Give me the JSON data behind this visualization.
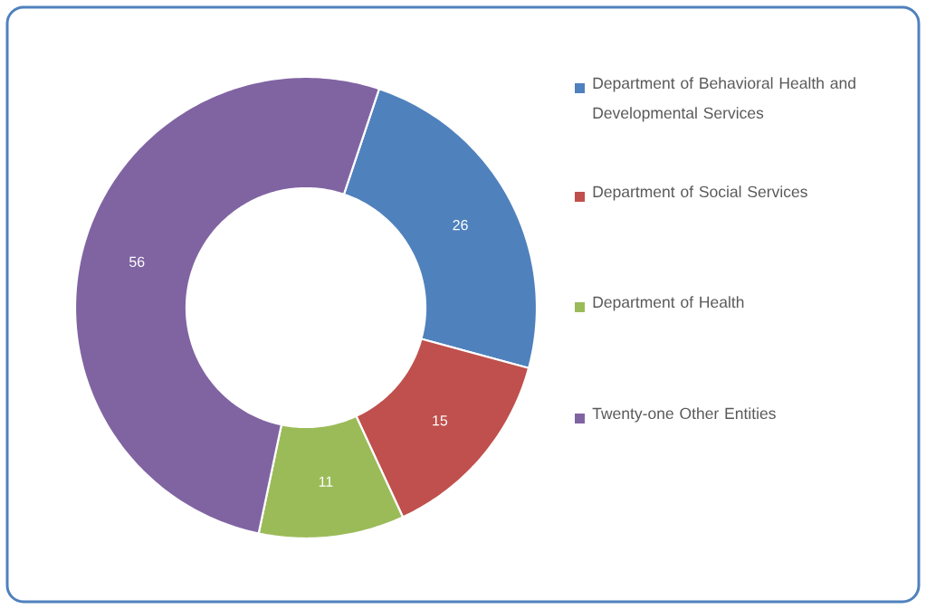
{
  "chart_data": {
    "type": "donut",
    "categories": [
      "Department of Behavioral Health and Developmental Services",
      "Department of Social Services",
      "Department of Health",
      "Twenty-one Other Entities"
    ],
    "values": [
      26,
      15,
      11,
      56
    ],
    "colors": [
      "#4f81bd",
      "#c0504d",
      "#9bbb59",
      "#8064a2"
    ],
    "data_labels": true,
    "legend": "right"
  }
}
